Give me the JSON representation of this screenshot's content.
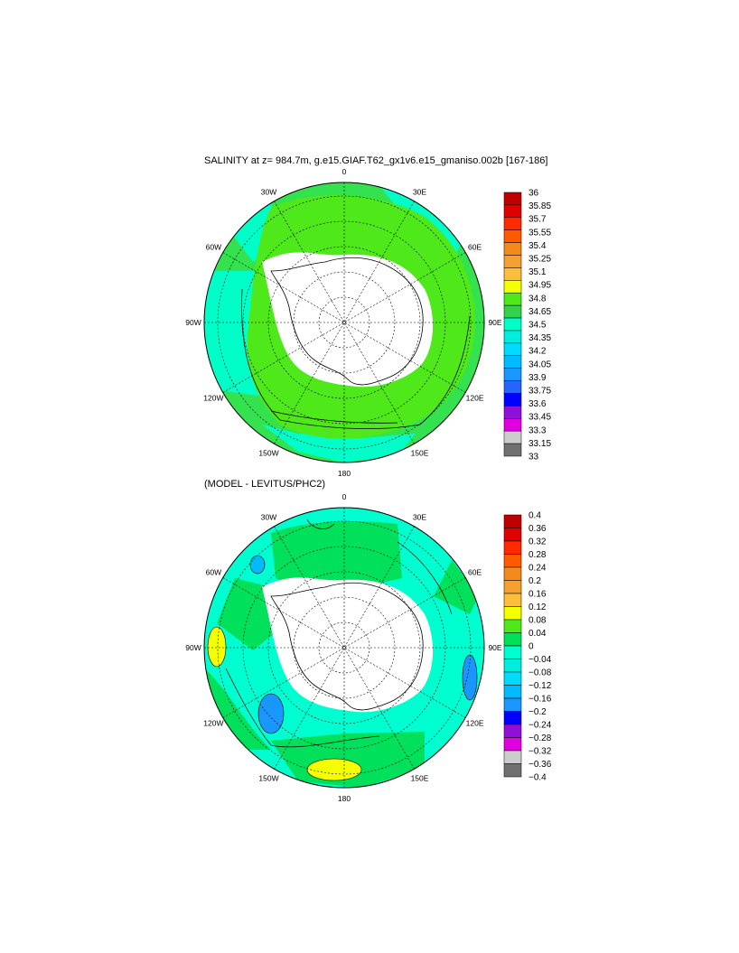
{
  "top_panel": {
    "title": "SALINITY at z= 984.7m, g.e15.GIAF.T62_gx1v6.e15_gmaniso.002b [167-186]",
    "longitude_labels": [
      "0",
      "30E",
      "60E",
      "90E",
      "120E",
      "150E",
      "180",
      "150W",
      "120W",
      "90W",
      "60W",
      "30W"
    ],
    "colorbar": {
      "labels": [
        "36",
        "35.85",
        "35.7",
        "35.55",
        "35.4",
        "35.25",
        "35.1",
        "34.95",
        "34.8",
        "34.65",
        "34.5",
        "34.35",
        "34.2",
        "34.05",
        "33.9",
        "33.75",
        "33.6",
        "33.45",
        "33.3",
        "33.15",
        "33"
      ],
      "colors": [
        "#c00000",
        "#e00000",
        "#ff2a00",
        "#ff5a00",
        "#f58a1c",
        "#f5a030",
        "#fbbe3c",
        "#f4ff00",
        "#4fe81a",
        "#32d24a",
        "#00ffc8",
        "#00eedd",
        "#00dcff",
        "#00bbff",
        "#1a96ff",
        "#2864ff",
        "#0000ff",
        "#9010d8",
        "#e000e0",
        "#cccccc",
        "#707070"
      ]
    }
  },
  "bottom_panel": {
    "title": "(MODEL - LEVITUS/PHC2)",
    "longitude_labels": [
      "0",
      "30E",
      "60E",
      "90E",
      "120E",
      "150E",
      "180",
      "150W",
      "120W",
      "90W",
      "60W",
      "30W"
    ],
    "colorbar": {
      "labels": [
        "0.4",
        "0.36",
        "0.32",
        "0.28",
        "0.24",
        "0.2",
        "0.16",
        "0.12",
        "0.08",
        "0.04",
        "0",
        "−0.04",
        "−0.08",
        "−0.12",
        "−0.16",
        "−0.2",
        "−0.24",
        "−0.28",
        "−0.32",
        "−0.36",
        "−0.4"
      ],
      "colors": [
        "#c00000",
        "#e00000",
        "#ff2a00",
        "#ff5a00",
        "#f58a1c",
        "#f5a030",
        "#fbbe3c",
        "#f4ff00",
        "#4fe81a",
        "#00e05a",
        "#00ffd0",
        "#00eedd",
        "#00dcff",
        "#00bbff",
        "#1a96ff",
        "#0000ff",
        "#9010d8",
        "#e000e0",
        "#cccccc",
        "#707070"
      ]
    }
  }
}
